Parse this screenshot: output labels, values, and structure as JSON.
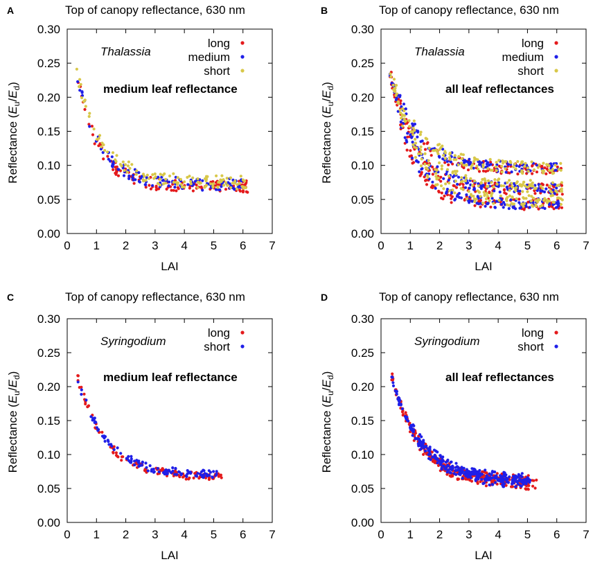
{
  "colors": {
    "long": "#e41a1c",
    "medium": "#1f1fe8",
    "short": "#d8c84a",
    "short_syringodium": "#1f1fe8"
  },
  "chart_data": [
    {
      "panel": "A",
      "type": "scatter",
      "title": "Top of canopy reflectance, 630 nm",
      "xlabel": "LAI",
      "ylabel_main": "Reflectance (",
      "ylabel_sym_u": "E",
      "ylabel_sub_u": "u",
      "ylabel_slash": "/",
      "ylabel_sym_d": "E",
      "ylabel_sub_d": "d",
      "ylabel_close": ")",
      "species": "Thalassia",
      "note": "medium leaf reflectance",
      "xlim": [
        0,
        7
      ],
      "ylim": [
        0,
        0.3
      ],
      "x_ticks": [
        "0",
        "1",
        "2",
        "3",
        "4",
        "5",
        "6",
        "7"
      ],
      "y_ticks": [
        "0.00",
        "0.05",
        "0.10",
        "0.15",
        "0.20",
        "0.25",
        "0.30"
      ],
      "legend": [
        "long",
        "medium",
        "short"
      ],
      "series": [
        {
          "name": "long",
          "color": "#e41a1c",
          "model": {
            "a": 0.0597,
            "b": 0.238,
            "k": 1.35,
            "x0": 0.3,
            "xmax": 6.2,
            "spreads": [
              1.0
            ],
            "noise": 0.009
          }
        },
        {
          "name": "medium",
          "color": "#1f1fe8",
          "model": {
            "a": 0.0623,
            "b": 0.238,
            "k": 1.25,
            "x0": 0.3,
            "xmax": 6.0,
            "spreads": [
              1.0
            ],
            "noise": 0.009
          }
        },
        {
          "name": "short",
          "color": "#d8c84a",
          "model": {
            "a": 0.0648,
            "b": 0.24,
            "k": 1.15,
            "x0": 0.3,
            "xmax": 6.1,
            "spreads": [
              1.0
            ],
            "noise": 0.01
          }
        }
      ]
    },
    {
      "panel": "B",
      "type": "scatter",
      "title": "Top of canopy reflectance, 630 nm",
      "xlabel": "LAI",
      "ylabel_main": "Reflectance (",
      "ylabel_sym_u": "E",
      "ylabel_sub_u": "u",
      "ylabel_slash": "/",
      "ylabel_sym_d": "E",
      "ylabel_sub_d": "d",
      "ylabel_close": ")",
      "species": "Thalassia",
      "note": "all leaf reflectances",
      "xlim": [
        0,
        7
      ],
      "ylim": [
        0,
        0.3
      ],
      "x_ticks": [
        "0",
        "1",
        "2",
        "3",
        "4",
        "5",
        "6",
        "7"
      ],
      "y_ticks": [
        "0.00",
        "0.05",
        "0.10",
        "0.15",
        "0.20",
        "0.25",
        "0.30"
      ],
      "legend": [
        "long",
        "medium",
        "short"
      ],
      "series": [
        {
          "name": "long",
          "color": "#e41a1c",
          "model": {
            "a": 0.065,
            "b": 0.238,
            "k": 1.3,
            "x0": 0.3,
            "xmax": 6.2,
            "spreads": [
              0.65,
              1.0,
              1.45
            ],
            "noise": 0.008
          }
        },
        {
          "name": "medium",
          "color": "#1f1fe8",
          "model": {
            "a": 0.066,
            "b": 0.24,
            "k": 1.2,
            "x0": 0.3,
            "xmax": 6.1,
            "spreads": [
              0.65,
              1.0,
              1.45
            ],
            "noise": 0.008
          }
        },
        {
          "name": "short",
          "color": "#d8c84a",
          "model": {
            "a": 0.068,
            "b": 0.241,
            "k": 1.1,
            "x0": 0.3,
            "xmax": 6.2,
            "spreads": [
              0.7,
              1.0,
              1.4
            ],
            "noise": 0.009
          }
        }
      ]
    },
    {
      "panel": "C",
      "type": "scatter",
      "title": "Top of canopy reflectance, 630 nm",
      "xlabel": "LAI",
      "ylabel_main": "Reflectance (",
      "ylabel_sym_u": "E",
      "ylabel_sub_u": "u",
      "ylabel_slash": "/",
      "ylabel_sym_d": "E",
      "ylabel_sub_d": "d",
      "ylabel_close": ")",
      "species": "Syringodium",
      "note": "medium leaf reflectance",
      "xlim": [
        0,
        7
      ],
      "ylim": [
        0,
        0.3
      ],
      "x_ticks": [
        "0",
        "1",
        "2",
        "3",
        "4",
        "5",
        "6",
        "7"
      ],
      "y_ticks": [
        "0.00",
        "0.05",
        "0.10",
        "0.15",
        "0.20",
        "0.25",
        "0.30"
      ],
      "legend": [
        "long",
        "short"
      ],
      "series": [
        {
          "name": "long",
          "color": "#e41a1c",
          "model": {
            "a": 0.058,
            "b": 0.215,
            "k": 1.05,
            "x0": 0.35,
            "xmax": 5.3,
            "spreads": [
              1.0
            ],
            "noise": 0.006
          }
        },
        {
          "name": "short",
          "color": "#1f1fe8",
          "model": {
            "a": 0.06,
            "b": 0.212,
            "k": 1.0,
            "x0": 0.35,
            "xmax": 5.1,
            "spreads": [
              1.0
            ],
            "noise": 0.006
          }
        }
      ]
    },
    {
      "panel": "D",
      "type": "scatter",
      "title": "Top of canopy reflectance, 630 nm",
      "xlabel": "LAI",
      "ylabel_main": "Reflectance (",
      "ylabel_sym_u": "E",
      "ylabel_sub_u": "u",
      "ylabel_slash": "/",
      "ylabel_sym_d": "E",
      "ylabel_sub_d": "d",
      "ylabel_close": ")",
      "species": "Syringodium",
      "note": "all leaf reflectances",
      "xlim": [
        0,
        7
      ],
      "ylim": [
        0,
        0.3
      ],
      "x_ticks": [
        "0",
        "1",
        "2",
        "3",
        "4",
        "5",
        "6",
        "7"
      ],
      "y_ticks": [
        "0.00",
        "0.05",
        "0.10",
        "0.15",
        "0.20",
        "0.25",
        "0.30"
      ],
      "legend": [
        "long",
        "short"
      ],
      "series": [
        {
          "name": "long",
          "color": "#e41a1c",
          "model": {
            "a": 0.058,
            "b": 0.218,
            "k": 1.05,
            "x0": 0.35,
            "xmax": 5.3,
            "spreads": [
              0.92,
              1.0,
              1.08
            ],
            "noise": 0.006
          }
        },
        {
          "name": "short",
          "color": "#1f1fe8",
          "model": {
            "a": 0.06,
            "b": 0.215,
            "k": 1.0,
            "x0": 0.35,
            "xmax": 5.1,
            "spreads": [
              0.92,
              1.0,
              1.08
            ],
            "noise": 0.006
          }
        }
      ]
    }
  ]
}
